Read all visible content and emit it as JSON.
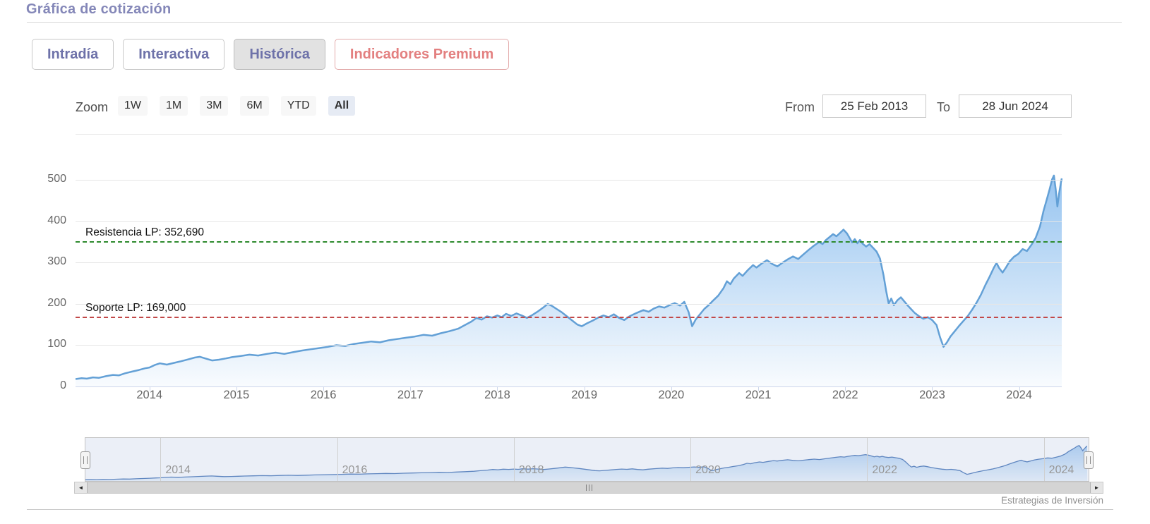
{
  "page": {
    "title": "Gráfica de cotización",
    "attribution": "Estrategias de Inversión"
  },
  "tabs": [
    {
      "label": "Intradía",
      "active": false
    },
    {
      "label": "Interactiva",
      "active": false
    },
    {
      "label": "Histórica",
      "active": true
    },
    {
      "label": "Indicadores Premium",
      "premium": true
    }
  ],
  "toolbar": {
    "zoom_label": "Zoom",
    "ranges": [
      "1W",
      "1M",
      "3M",
      "6M",
      "YTD",
      "All"
    ],
    "active_range": "All",
    "from_label": "From",
    "from_value": "25 Feb 2013",
    "to_label": "To",
    "to_value": "28 Jun 2024"
  },
  "icons": {
    "scrollbar_left": "◄",
    "scrollbar_right": "►"
  },
  "colors": {
    "accent_purple": "#6e72a9",
    "premium_red": "#e38080",
    "series_line": "#63a0d6",
    "series_fill_top": "rgba(124,181,236,0.8)",
    "series_fill_bottom": "rgba(124,181,236,0.05)",
    "resistance_green": "#2d8a2d",
    "support_red": "#c24848",
    "nav_line": "#5f87c0"
  },
  "chart_data": {
    "type": "area",
    "title": "",
    "xlabel": "",
    "ylabel": "",
    "legend": false,
    "grid": true,
    "xlim": [
      2013.15,
      2024.49
    ],
    "ylim": [
      0,
      500
    ],
    "yticks": [
      0,
      100,
      200,
      300,
      400,
      500
    ],
    "xticks": [
      2014,
      2015,
      2016,
      2017,
      2018,
      2019,
      2020,
      2021,
      2022,
      2023,
      2024
    ],
    "navigator_ticks": [
      2014,
      2016,
      2018,
      2020,
      2022,
      2024
    ],
    "plotlines": [
      {
        "label": "Resistencia LP: 352,690",
        "value": 352.69,
        "color": "#2d8a2d"
      },
      {
        "label": "Soporte LP: 169,000",
        "value": 169.0,
        "color": "#c24848"
      }
    ],
    "series": [
      {
        "points": [
          [
            2013.15,
            18
          ],
          [
            2013.22,
            20
          ],
          [
            2013.28,
            19
          ],
          [
            2013.35,
            22
          ],
          [
            2013.42,
            21
          ],
          [
            2013.5,
            25
          ],
          [
            2013.58,
            28
          ],
          [
            2013.65,
            27
          ],
          [
            2013.72,
            32
          ],
          [
            2013.8,
            36
          ],
          [
            2013.88,
            40
          ],
          [
            2013.95,
            44
          ],
          [
            2014.0,
            46
          ],
          [
            2014.06,
            52
          ],
          [
            2014.12,
            56
          ],
          [
            2014.2,
            53
          ],
          [
            2014.28,
            57
          ],
          [
            2014.36,
            61
          ],
          [
            2014.45,
            66
          ],
          [
            2014.52,
            70
          ],
          [
            2014.58,
            72
          ],
          [
            2014.64,
            68
          ],
          [
            2014.72,
            63
          ],
          [
            2014.8,
            65
          ],
          [
            2014.88,
            68
          ],
          [
            2014.95,
            71
          ],
          [
            2015.05,
            74
          ],
          [
            2015.15,
            77
          ],
          [
            2015.25,
            75
          ],
          [
            2015.35,
            79
          ],
          [
            2015.45,
            82
          ],
          [
            2015.55,
            79
          ],
          [
            2015.65,
            83
          ],
          [
            2015.75,
            87
          ],
          [
            2015.85,
            90
          ],
          [
            2015.95,
            93
          ],
          [
            2016.05,
            96
          ],
          [
            2016.15,
            100
          ],
          [
            2016.25,
            98
          ],
          [
            2016.35,
            103
          ],
          [
            2016.45,
            106
          ],
          [
            2016.55,
            109
          ],
          [
            2016.65,
            107
          ],
          [
            2016.75,
            112
          ],
          [
            2016.85,
            115
          ],
          [
            2016.95,
            118
          ],
          [
            2017.05,
            121
          ],
          [
            2017.15,
            125
          ],
          [
            2017.25,
            123
          ],
          [
            2017.35,
            129
          ],
          [
            2017.45,
            134
          ],
          [
            2017.55,
            140
          ],
          [
            2017.62,
            148
          ],
          [
            2017.7,
            157
          ],
          [
            2017.76,
            166
          ],
          [
            2017.82,
            162
          ],
          [
            2017.88,
            170
          ],
          [
            2017.94,
            167
          ],
          [
            2018.0,
            172
          ],
          [
            2018.05,
            168
          ],
          [
            2018.1,
            176
          ],
          [
            2018.16,
            171
          ],
          [
            2018.22,
            177
          ],
          [
            2018.28,
            172
          ],
          [
            2018.34,
            166
          ],
          [
            2018.4,
            173
          ],
          [
            2018.46,
            181
          ],
          [
            2018.52,
            190
          ],
          [
            2018.58,
            200
          ],
          [
            2018.63,
            195
          ],
          [
            2018.68,
            188
          ],
          [
            2018.74,
            180
          ],
          [
            2018.8,
            170
          ],
          [
            2018.86,
            160
          ],
          [
            2018.92,
            150
          ],
          [
            2018.97,
            146
          ],
          [
            2019.03,
            153
          ],
          [
            2019.1,
            160
          ],
          [
            2019.16,
            167
          ],
          [
            2019.22,
            172
          ],
          [
            2019.28,
            168
          ],
          [
            2019.34,
            175
          ],
          [
            2019.4,
            166
          ],
          [
            2019.46,
            161
          ],
          [
            2019.52,
            170
          ],
          [
            2019.6,
            178
          ],
          [
            2019.68,
            185
          ],
          [
            2019.74,
            181
          ],
          [
            2019.8,
            189
          ],
          [
            2019.86,
            194
          ],
          [
            2019.92,
            191
          ],
          [
            2019.98,
            197
          ],
          [
            2020.04,
            202
          ],
          [
            2020.1,
            196
          ],
          [
            2020.15,
            205
          ],
          [
            2020.2,
            180
          ],
          [
            2020.24,
            146
          ],
          [
            2020.28,
            162
          ],
          [
            2020.33,
            175
          ],
          [
            2020.38,
            188
          ],
          [
            2020.43,
            197
          ],
          [
            2020.48,
            208
          ],
          [
            2020.54,
            220
          ],
          [
            2020.6,
            238
          ],
          [
            2020.64,
            255
          ],
          [
            2020.68,
            248
          ],
          [
            2020.72,
            262
          ],
          [
            2020.78,
            275
          ],
          [
            2020.82,
            268
          ],
          [
            2020.88,
            282
          ],
          [
            2020.94,
            294
          ],
          [
            2020.98,
            288
          ],
          [
            2021.04,
            298
          ],
          [
            2021.1,
            306
          ],
          [
            2021.16,
            297
          ],
          [
            2021.22,
            291
          ],
          [
            2021.28,
            300
          ],
          [
            2021.34,
            308
          ],
          [
            2021.4,
            315
          ],
          [
            2021.46,
            309
          ],
          [
            2021.52,
            320
          ],
          [
            2021.58,
            331
          ],
          [
            2021.64,
            341
          ],
          [
            2021.7,
            350
          ],
          [
            2021.74,
            345
          ],
          [
            2021.78,
            355
          ],
          [
            2021.82,
            362
          ],
          [
            2021.86,
            369
          ],
          [
            2021.9,
            364
          ],
          [
            2021.94,
            372
          ],
          [
            2021.98,
            380
          ],
          [
            2022.02,
            371
          ],
          [
            2022.05,
            360
          ],
          [
            2022.08,
            349
          ],
          [
            2022.11,
            357
          ],
          [
            2022.14,
            347
          ],
          [
            2022.17,
            355
          ],
          [
            2022.2,
            346
          ],
          [
            2022.24,
            339
          ],
          [
            2022.28,
            345
          ],
          [
            2022.32,
            336
          ],
          [
            2022.36,
            327
          ],
          [
            2022.4,
            310
          ],
          [
            2022.44,
            270
          ],
          [
            2022.47,
            232
          ],
          [
            2022.5,
            201
          ],
          [
            2022.53,
            213
          ],
          [
            2022.56,
            197
          ],
          [
            2022.6,
            209
          ],
          [
            2022.64,
            216
          ],
          [
            2022.68,
            206
          ],
          [
            2022.72,
            196
          ],
          [
            2022.76,
            187
          ],
          [
            2022.8,
            178
          ],
          [
            2022.85,
            170
          ],
          [
            2022.9,
            164
          ],
          [
            2022.95,
            168
          ],
          [
            2023.0,
            161
          ],
          [
            2023.05,
            149
          ],
          [
            2023.09,
            120
          ],
          [
            2023.13,
            96
          ],
          [
            2023.17,
            107
          ],
          [
            2023.21,
            121
          ],
          [
            2023.26,
            134
          ],
          [
            2023.31,
            147
          ],
          [
            2023.36,
            159
          ],
          [
            2023.41,
            171
          ],
          [
            2023.46,
            186
          ],
          [
            2023.51,
            203
          ],
          [
            2023.56,
            222
          ],
          [
            2023.61,
            245
          ],
          [
            2023.66,
            266
          ],
          [
            2023.71,
            288
          ],
          [
            2023.74,
            299
          ],
          [
            2023.77,
            287
          ],
          [
            2023.81,
            276
          ],
          [
            2023.85,
            289
          ],
          [
            2023.89,
            303
          ],
          [
            2023.94,
            314
          ],
          [
            2023.99,
            321
          ],
          [
            2024.04,
            333
          ],
          [
            2024.09,
            328
          ],
          [
            2024.14,
            343
          ],
          [
            2024.19,
            360
          ],
          [
            2024.24,
            388
          ],
          [
            2024.28,
            425
          ],
          [
            2024.32,
            455
          ],
          [
            2024.35,
            478
          ],
          [
            2024.38,
            502
          ],
          [
            2024.4,
            511
          ],
          [
            2024.42,
            478
          ],
          [
            2024.44,
            436
          ],
          [
            2024.46,
            468
          ],
          [
            2024.48,
            494
          ],
          [
            2024.49,
            504
          ]
        ]
      }
    ]
  }
}
